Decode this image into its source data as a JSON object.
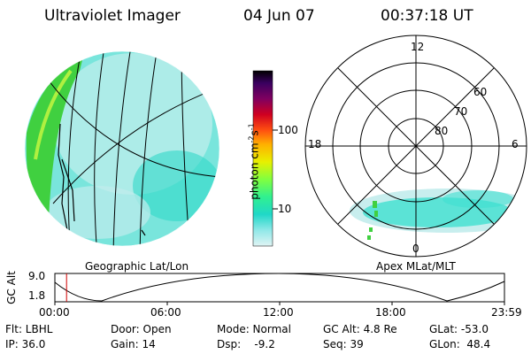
{
  "header": {
    "title": "Ultraviolet Imager",
    "date": "04 Jun 07",
    "time": "00:37:18 UT"
  },
  "left_panel": {
    "label": "Geographic Lat/Lon"
  },
  "right_panel": {
    "label": "Apex  MLat/MLT",
    "mlt_labels": {
      "top": "12",
      "left": "18",
      "right": "6",
      "bottom": "0"
    },
    "lat_labels": [
      "60",
      "70",
      "80"
    ]
  },
  "colorbar": {
    "label": "photon cm",
    "label_exp1": "-2",
    "label_mid": "s",
    "label_exp2": "-1",
    "ticks": [
      "100",
      "10"
    ],
    "colors": [
      "#000000",
      "#200040",
      "#4b0080",
      "#8a0050",
      "#c00020",
      "#ff2020",
      "#ff7a00",
      "#ffc000",
      "#e0ff00",
      "#80ff40",
      "#30ff90",
      "#00e0d0",
      "#80eeee",
      "#d0f4f4"
    ]
  },
  "altitude_strip": {
    "axis_label": "GC Alt",
    "y_ticks": [
      "9.0",
      "1.8"
    ],
    "x_ticks": [
      "00:00",
      "06:00",
      "12:00",
      "18:00",
      "23:59"
    ],
    "current_time_fraction": 0.026
  },
  "footer": {
    "filter": "Flt: LBHL",
    "door": "Door: Open",
    "mode": "Mode: Normal",
    "gc_alt": "GC Alt: 4.8 Re",
    "glat": "GLat: -53.0",
    "ip": "IP: 36.0",
    "gain": "Gain: 14",
    "dsp": "Dsp:    -9.2",
    "seq": "Seq: 39",
    "glon": "GLon:  48.4"
  },
  "colors": {
    "aurora_cyan": "#40e0d0",
    "aurora_green": "#40d040",
    "aurora_pale": "#c8eeee"
  }
}
